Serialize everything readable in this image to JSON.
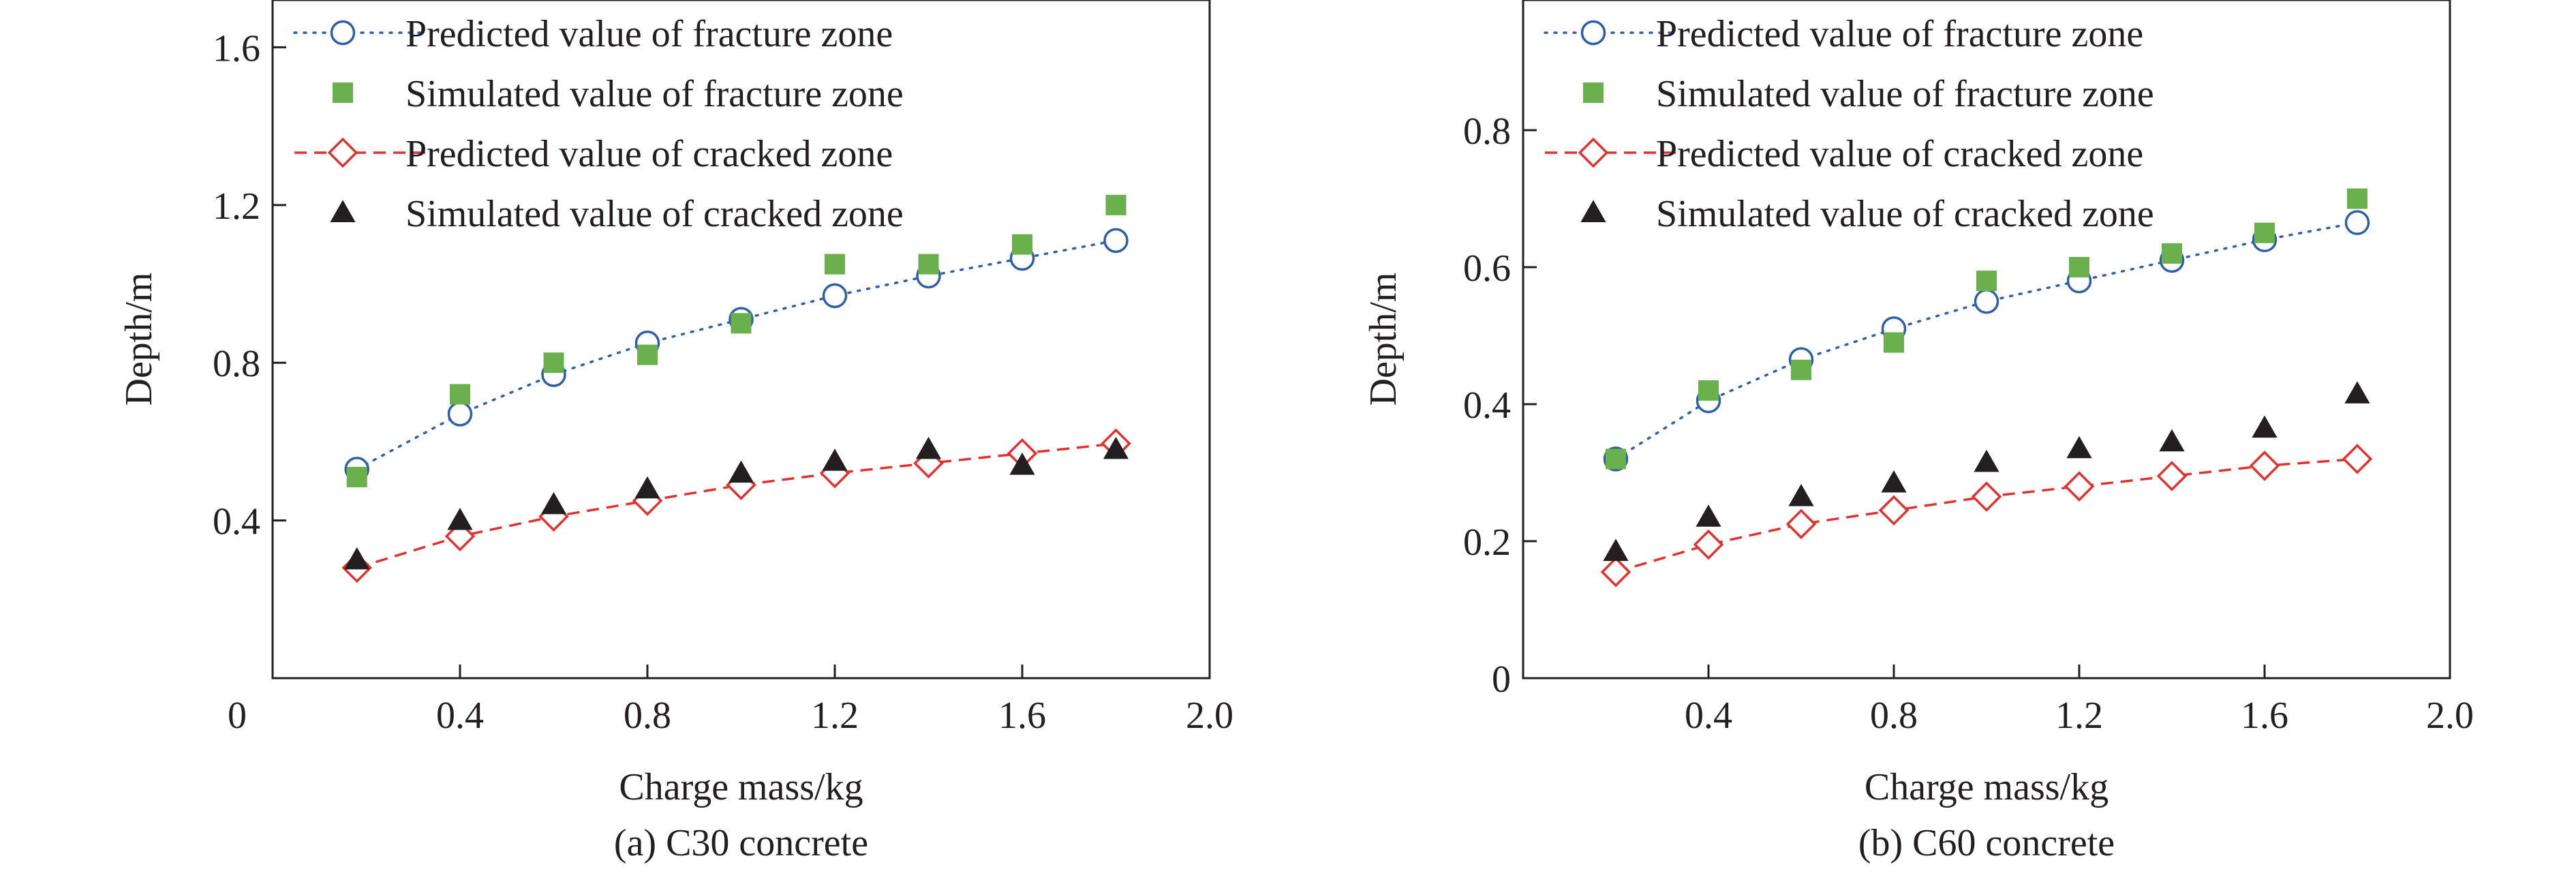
{
  "chart_data": [
    {
      "type": "scatter",
      "panel_caption": "(a) C30 concrete",
      "xlabel": "Charge mass/kg",
      "ylabel": "Depth/m",
      "xlim": [
        0,
        2.0
      ],
      "ylim": [
        0,
        1.72
      ],
      "x_ticks": [
        0.4,
        0.8,
        1.2,
        1.6,
        2.0
      ],
      "x_tick_labels": [
        "0.4",
        "0.8",
        "1.2",
        "1.6",
        "2.0"
      ],
      "y_ticks": [
        0.4,
        0.8,
        1.2,
        1.6
      ],
      "y_tick_labels": [
        "0.4",
        "0.8",
        "1.2",
        "1.6"
      ],
      "origin_label": "0",
      "grid": false,
      "legend": "top-left",
      "series": [
        {
          "name": "Predicted value of fracture zone",
          "marker": "open-circle",
          "line": "dotted",
          "color": "#2e5fa8",
          "x": [
            0.18,
            0.4,
            0.6,
            0.8,
            1.0,
            1.2,
            1.4,
            1.6,
            1.8
          ],
          "y": [
            0.53,
            0.67,
            0.77,
            0.85,
            0.91,
            0.97,
            1.02,
            1.065,
            1.11
          ]
        },
        {
          "name": "Simulated value of fracture zone",
          "marker": "filled-square",
          "line": "none",
          "color": "#6ab04c",
          "x": [
            0.18,
            0.4,
            0.6,
            0.8,
            1.0,
            1.2,
            1.4,
            1.6,
            1.8
          ],
          "y": [
            0.51,
            0.72,
            0.8,
            0.82,
            0.9,
            1.05,
            1.05,
            1.1,
            1.2
          ]
        },
        {
          "name": "Predicted value of cracked zone",
          "marker": "open-diamond",
          "line": "dashed",
          "color": "#e0322f",
          "x": [
            0.18,
            0.4,
            0.6,
            0.8,
            1.0,
            1.2,
            1.4,
            1.6,
            1.8
          ],
          "y": [
            0.28,
            0.36,
            0.41,
            0.45,
            0.49,
            0.52,
            0.545,
            0.57,
            0.595
          ]
        },
        {
          "name": "Simulated value of cracked zone",
          "marker": "filled-triangle",
          "line": "none",
          "color": "#231f20",
          "x": [
            0.18,
            0.4,
            0.6,
            0.8,
            1.0,
            1.2,
            1.4,
            1.6,
            1.8
          ],
          "y": [
            0.3,
            0.4,
            0.44,
            0.48,
            0.52,
            0.55,
            0.58,
            0.54,
            0.58
          ]
        }
      ]
    },
    {
      "type": "scatter",
      "panel_caption": "(b) C60 concrete",
      "xlabel": "Charge mass/kg",
      "ylabel": "Depth/m",
      "xlim": [
        0,
        2.0
      ],
      "ylim": [
        0,
        0.99
      ],
      "x_ticks": [
        0.4,
        0.8,
        1.2,
        1.6,
        2.0
      ],
      "x_tick_labels": [
        "0.4",
        "0.8",
        "1.2",
        "1.6",
        "2.0"
      ],
      "y_ticks": [
        0,
        0.2,
        0.4,
        0.6,
        0.8
      ],
      "y_tick_labels": [
        "0",
        "0.2",
        "0.4",
        "0.6",
        "0.8"
      ],
      "grid": false,
      "legend": "top-left",
      "series": [
        {
          "name": "Predicted value of fracture zone",
          "marker": "open-circle",
          "line": "dotted",
          "color": "#2e5fa8",
          "x": [
            0.2,
            0.4,
            0.6,
            0.8,
            1.0,
            1.2,
            1.4,
            1.6,
            1.8
          ],
          "y": [
            0.32,
            0.405,
            0.465,
            0.51,
            0.55,
            0.58,
            0.61,
            0.64,
            0.665
          ]
        },
        {
          "name": "Simulated value of fracture zone",
          "marker": "filled-square",
          "line": "none",
          "color": "#6ab04c",
          "x": [
            0.2,
            0.4,
            0.6,
            0.8,
            1.0,
            1.2,
            1.4,
            1.6,
            1.8
          ],
          "y": [
            0.32,
            0.42,
            0.45,
            0.49,
            0.58,
            0.6,
            0.62,
            0.65,
            0.7
          ]
        },
        {
          "name": "Predicted value of cracked zone",
          "marker": "open-diamond",
          "line": "dashed",
          "color": "#e0322f",
          "x": [
            0.2,
            0.4,
            0.6,
            0.8,
            1.0,
            1.2,
            1.4,
            1.6,
            1.8
          ],
          "y": [
            0.155,
            0.195,
            0.225,
            0.245,
            0.265,
            0.28,
            0.295,
            0.31,
            0.32
          ]
        },
        {
          "name": "Simulated value of cracked zone",
          "marker": "filled-triangle",
          "line": "none",
          "color": "#231f20",
          "x": [
            0.2,
            0.4,
            0.6,
            0.8,
            1.0,
            1.2,
            1.4,
            1.6,
            1.8
          ],
          "y": [
            0.185,
            0.235,
            0.265,
            0.285,
            0.315,
            0.335,
            0.345,
            0.365,
            0.415
          ]
        }
      ]
    }
  ]
}
